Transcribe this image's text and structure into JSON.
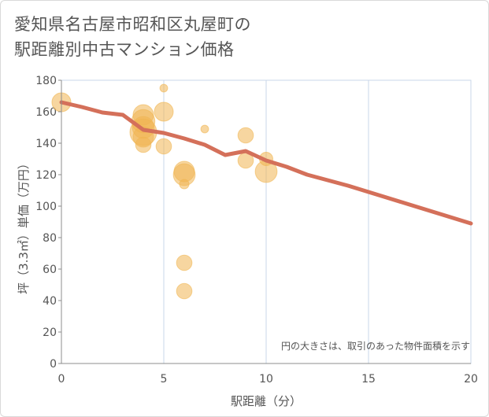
{
  "page": {
    "title_line1": "愛知県名古屋市昭和区丸屋町の",
    "title_line2": "駅距離別中古マンション価格"
  },
  "chart_data": {
    "type": "scatter",
    "title": "愛知県名古屋市昭和区丸屋町の駅距離別中古マンション価格",
    "xlabel": "駅距離（分）",
    "ylabel": "坪（3.3㎡）単価（万円）",
    "xlim": [
      0,
      20
    ],
    "ylim": [
      0,
      180
    ],
    "xticks": [
      0,
      5,
      10,
      15,
      20
    ],
    "yticks": [
      0,
      20,
      40,
      60,
      80,
      100,
      120,
      140,
      160,
      180
    ],
    "grid": "vertical",
    "note": "円の大きさは、取引のあった物件面積を示す",
    "colors": {
      "point": "#f0b552",
      "line": "#d4705a",
      "grid": "#c9d7e8",
      "axis": "#8c8c8c"
    },
    "points": [
      {
        "x": 0,
        "y": 166,
        "size": 60
      },
      {
        "x": 4,
        "y": 158,
        "size": 70
      },
      {
        "x": 4,
        "y": 154,
        "size": 90
      },
      {
        "x": 4,
        "y": 150,
        "size": 80
      },
      {
        "x": 4,
        "y": 147,
        "size": 120
      },
      {
        "x": 4,
        "y": 144,
        "size": 70
      },
      {
        "x": 4,
        "y": 139,
        "size": 40
      },
      {
        "x": 5,
        "y": 175,
        "size": 10
      },
      {
        "x": 5,
        "y": 160,
        "size": 60
      },
      {
        "x": 5,
        "y": 138,
        "size": 40
      },
      {
        "x": 6,
        "y": 122,
        "size": 70
      },
      {
        "x": 6,
        "y": 120,
        "size": 80
      },
      {
        "x": 6,
        "y": 114,
        "size": 15
      },
      {
        "x": 6,
        "y": 64,
        "size": 40
      },
      {
        "x": 6,
        "y": 46,
        "size": 40
      },
      {
        "x": 7,
        "y": 149,
        "size": 10
      },
      {
        "x": 9,
        "y": 145,
        "size": 40
      },
      {
        "x": 9,
        "y": 129,
        "size": 40
      },
      {
        "x": 10,
        "y": 130,
        "size": 30
      },
      {
        "x": 10,
        "y": 122,
        "size": 80
      }
    ],
    "trend": {
      "name": "average",
      "x": [
        0,
        1,
        2,
        3,
        4,
        5,
        6,
        7,
        8,
        9,
        10,
        11,
        12,
        13,
        14,
        15,
        16,
        17,
        18,
        19,
        20
      ],
      "y": [
        166,
        163,
        159.5,
        158,
        148.5,
        146.5,
        143,
        139,
        132.5,
        135,
        129,
        125,
        120,
        116.5,
        113,
        109,
        105,
        101,
        97,
        93,
        89
      ]
    }
  }
}
